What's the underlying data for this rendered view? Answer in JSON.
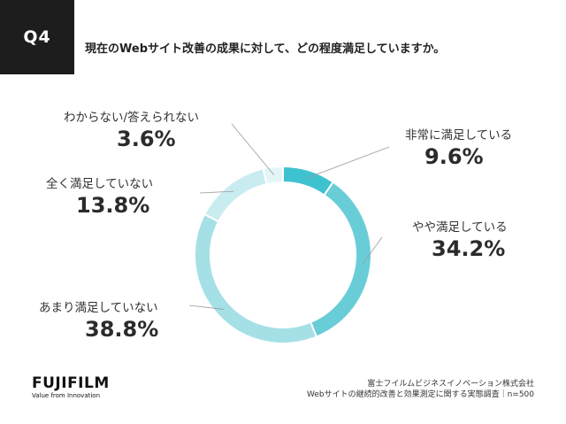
{
  "header": {
    "badge": "Q4",
    "question": "現在のWebサイト改善の成果に対して、どの程度満足していますか。"
  },
  "chart_data": {
    "type": "pie",
    "donut": true,
    "categories": [
      "非常に満足している",
      "やや満足している",
      "あまり満足していない",
      "全く満足していない",
      "わからない/答えられない"
    ],
    "values": [
      9.6,
      34.2,
      38.8,
      13.8,
      3.6
    ],
    "labels": [
      "9.6%",
      "34.2%",
      "38.8%",
      "13.8%",
      "3.6%"
    ],
    "colors": [
      "#3fc2cf",
      "#69cdd8",
      "#a6e0e7",
      "#c9ecf1",
      "#e4f5f8"
    ]
  },
  "footer": {
    "brand": "FUJIFILM",
    "tagline": "Value from Innovation",
    "source_line1": "富士フイルムビジネスイノベーション株式会社",
    "source_line2": "Webサイトの継続的改善と効果測定に関する実態調査｜n=500"
  }
}
